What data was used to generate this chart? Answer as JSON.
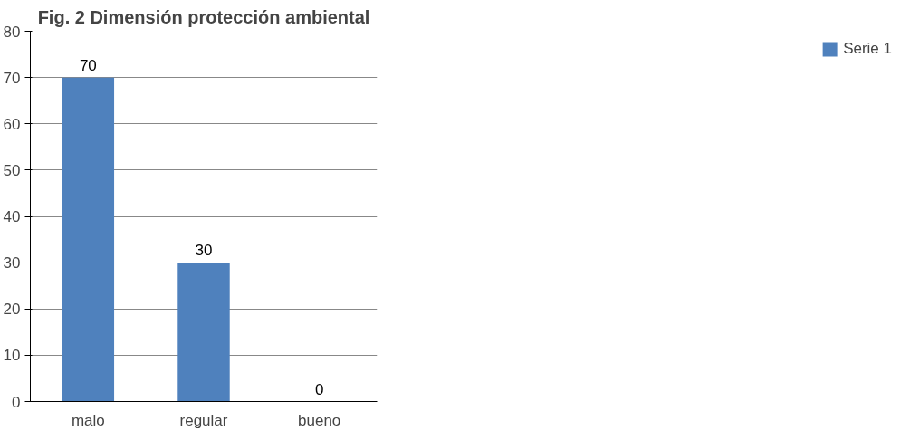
{
  "chart_data": {
    "type": "bar",
    "title": "Fig. 2 Dimensión protección ambiental",
    "categories": [
      "malo",
      "regular",
      "bueno"
    ],
    "series": [
      {
        "name": "Serie 1",
        "color": "#4f81bd",
        "values": [
          70,
          30,
          0
        ]
      }
    ],
    "ylim": [
      0,
      80
    ],
    "yticks": [
      0,
      10,
      20,
      30,
      40,
      50,
      60,
      70,
      80
    ],
    "grid": "y",
    "legend": "right",
    "data_labels": true
  }
}
